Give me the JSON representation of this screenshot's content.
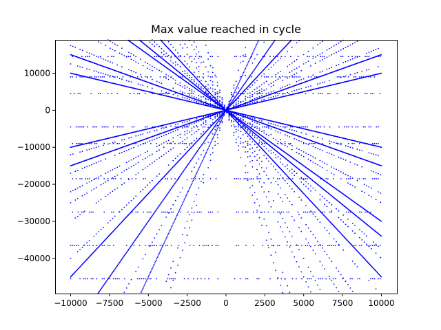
{
  "chart_data": {
    "type": "scatter",
    "title": "Max value reached in cycle",
    "xlabel": "",
    "ylabel": "",
    "xlim": [
      -11000,
      11000
    ],
    "ylim": [
      -49500,
      19000
    ],
    "grid": false,
    "legend": "none",
    "marker_color": "#0000ff",
    "marker_shape": "point",
    "xticks": [
      {
        "value": -10000,
        "label": "−10000"
      },
      {
        "value": -7500,
        "label": "−7500"
      },
      {
        "value": -5000,
        "label": "−5000"
      },
      {
        "value": -2500,
        "label": "−2500"
      },
      {
        "value": 0,
        "label": "0"
      },
      {
        "value": 2500,
        "label": "2500"
      },
      {
        "value": 5000,
        "label": "5000"
      },
      {
        "value": 7500,
        "label": "7500"
      },
      {
        "value": 10000,
        "label": "10000"
      }
    ],
    "yticks": [
      {
        "value": 10000,
        "label": "10000"
      },
      {
        "value": 0,
        "label": "0"
      },
      {
        "value": -10000,
        "label": "−10000"
      },
      {
        "value": -20000,
        "label": "−20000"
      },
      {
        "value": -30000,
        "label": "−30000"
      },
      {
        "value": -40000,
        "label": "−40000"
      }
    ],
    "x_range": [
      -10000,
      10000
    ],
    "ray_slopes_dense": [
      1,
      1.5,
      -1,
      -1.5,
      -3,
      -3.4,
      4.5,
      6,
      -4.5,
      9
    ],
    "ray_slopes_sparse": [
      1.2,
      1.7,
      2.2,
      2.5,
      3,
      4,
      -1.25,
      -1.75,
      -2.25,
      -2.5,
      -3.75,
      -4,
      -5,
      -6,
      -6.75,
      -8,
      7.5,
      12,
      13.5,
      -9,
      -12,
      -13.5
    ],
    "level_rows_y": [
      -45500,
      -36500,
      -27500,
      -18500,
      -9000,
      -4500,
      4500,
      9000,
      14500
    ],
    "level_rows_gap_x": [
      -500,
      500
    ]
  }
}
